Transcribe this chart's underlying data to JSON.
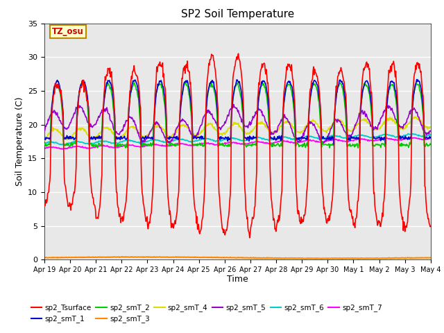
{
  "title": "SP2 Soil Temperature",
  "ylabel": "Soil Temperature (C)",
  "xlabel": "Time",
  "ylim": [
    0,
    35
  ],
  "annotation": "TZ_osu",
  "plot_bg_color": "#e8e8e8",
  "series_colors": {
    "sp2_Tsurface": "#ff0000",
    "sp2_smT_1": "#0000cc",
    "sp2_smT_2": "#00cc00",
    "sp2_smT_3": "#ff8800",
    "sp2_smT_4": "#dddd00",
    "sp2_smT_5": "#9900cc",
    "sp2_smT_6": "#00cccc",
    "sp2_smT_7": "#ff00ff"
  },
  "xtick_labels": [
    "Apr 19",
    "Apr 20",
    "Apr 21",
    "Apr 22",
    "Apr 23",
    "Apr 24",
    "Apr 25",
    "Apr 26",
    "Apr 27",
    "Apr 28",
    "Apr 29",
    "Apr 30",
    "May 1",
    "May 2",
    "May 3",
    "May 4"
  ],
  "n_points": 720,
  "duration_days": 15,
  "grid_color": "#ffffff",
  "yticks": [
    0,
    5,
    10,
    15,
    20,
    25,
    30,
    35
  ]
}
